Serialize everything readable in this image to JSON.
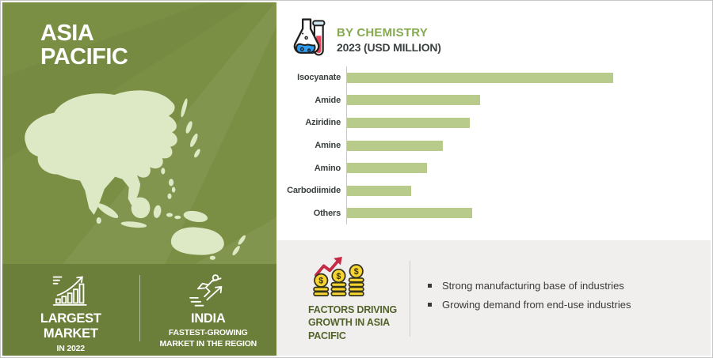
{
  "left_panel": {
    "region_title": "ASIA PACIFIC",
    "colors": {
      "background": "#7b8f44",
      "band": "#6c7f3a",
      "map": "#dde8c4"
    },
    "stats": [
      {
        "icon": "growth-chart-icon",
        "title": "LARGEST MARKET",
        "subtitle": "IN 2022"
      },
      {
        "icon": "runner-arrow-icon",
        "title": "INDIA",
        "subtitle": "FASTEST-GROWING MARKET IN THE REGION"
      }
    ]
  },
  "chart_header": {
    "icon": "chemistry-flask-icon",
    "title": "BY CHEMISTRY",
    "subtitle": "2023 (USD MILLION)",
    "title_color": "#84a94f"
  },
  "chart_data": {
    "type": "bar",
    "orientation": "horizontal",
    "title": "BY CHEMISTRY",
    "subtitle": "2023 (USD MILLION)",
    "unit": "USD Million",
    "categories": [
      "Isocyanate",
      "Amide",
      "Aziridine",
      "Amine",
      "Amino",
      "Carbodiimide",
      "Others"
    ],
    "values": [
      100,
      50,
      46,
      36,
      30,
      24,
      47
    ],
    "value_note": "relative bar lengths as % of largest bar; numeric axis labels not shown in image",
    "bar_color": "#b8cb8b",
    "axis_line_color": "#c9c9c9",
    "grid": false,
    "legend": false
  },
  "factors_panel": {
    "icon": "coins-growth-icon",
    "title": "FACTORS DRIVING GROWTH IN ASIA PACIFIC",
    "title_color": "#52632a",
    "background": "#f0efed",
    "bullets": [
      "Strong manufacturing base of industries",
      "Growing demand from end-use industries"
    ]
  }
}
